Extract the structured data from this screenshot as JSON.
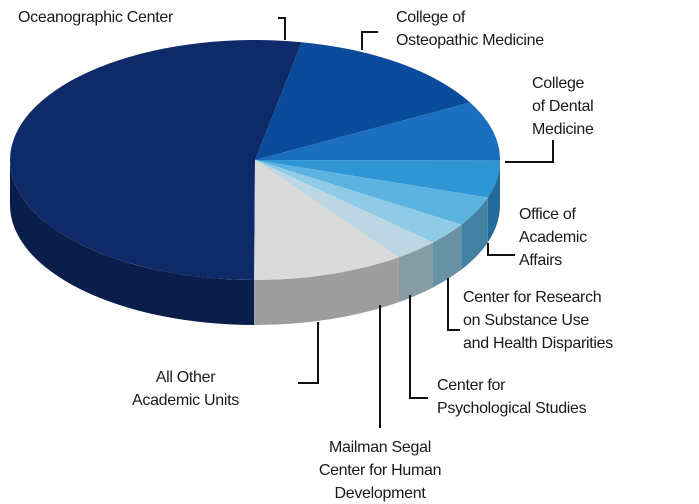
{
  "chart_data": {
    "type": "pie",
    "categories": [
      "Oceanographic Center",
      "College of\nOsteopathic Medicine",
      "College\nof Dental\nMedicine",
      "Office of\nAcademic\nAffairs",
      "Center for Research\non Substance Use\nand Health Disparities",
      "Center for\nPsychological Studies",
      "Mailman Segal\nCenter for Human\nDevelopment",
      "All Other\nAcademic Units"
    ],
    "values": [
      53,
      14,
      8,
      5,
      4,
      3,
      3,
      10
    ],
    "colors": [
      "#0f2a68",
      "#0b4b9c",
      "#1a6fbf",
      "#2e96d4",
      "#5cb3df",
      "#8fcbe6",
      "#bcd7e3",
      "#dadada"
    ]
  }
}
